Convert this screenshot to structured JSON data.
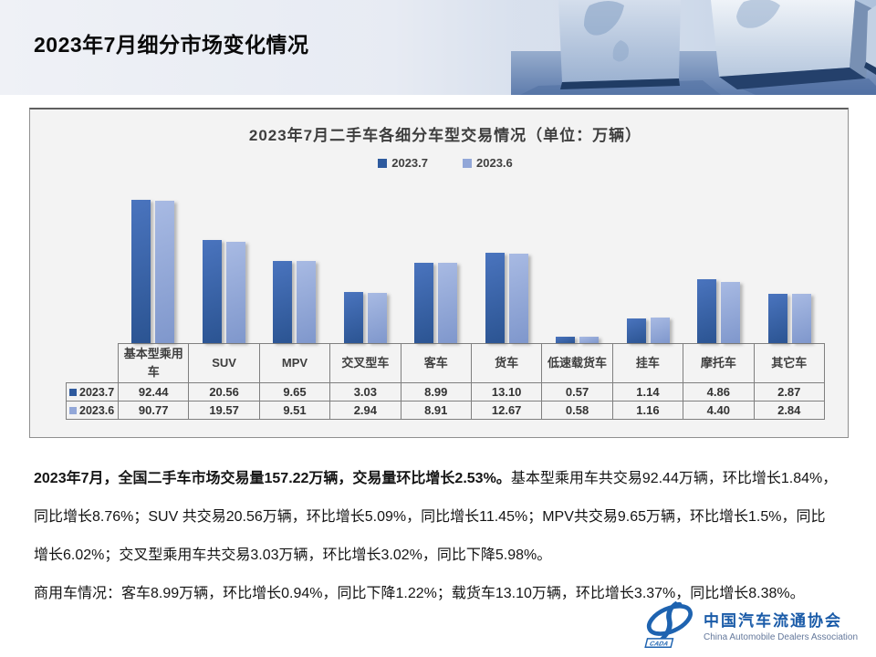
{
  "header": {
    "title": "2023年7月细分市场变化情况"
  },
  "chart_data": {
    "type": "bar",
    "title": "2023年7月二手车各细分车型交易情况（单位：万辆）",
    "unit": "万辆",
    "categories": [
      "基本型乘用车",
      "SUV",
      "MPV",
      "交叉型车",
      "客车",
      "货车",
      "低速载货车",
      "挂车",
      "摩托车",
      "其它车"
    ],
    "series": [
      {
        "name": "2023.7",
        "color": "#2E5A9E",
        "gradient": [
          "#4A74BE",
          "#2B5492"
        ],
        "values": [
          92.44,
          20.56,
          9.65,
          3.03,
          8.99,
          13.1,
          0.57,
          1.14,
          4.86,
          2.87
        ]
      },
      {
        "name": "2023.6",
        "color": "#92A7D8",
        "gradient": [
          "#A8BAE3",
          "#7F97CC"
        ],
        "values": [
          90.77,
          19.57,
          9.51,
          2.94,
          8.91,
          12.67,
          0.58,
          1.16,
          4.4,
          2.84
        ]
      }
    ],
    "y_scale": "log",
    "y_baseline": 0.456,
    "value_decimals": 2,
    "legend_position": "top-center",
    "grid": false,
    "data_table": true
  },
  "summary": {
    "p1_bold": "2023年7月，全国二手车市场交易量157.22万辆，交易量环比增长2.53%。",
    "p1_rest": "基本型乘用车共交易92.44万辆，环比增长1.84%，同比增长8.76%；SUV 共交易20.56万辆，环比增长5.09%，同比增长11.45%；MPV共交易9.65万辆，环比增长1.5%，同比增长6.02%；交叉型乘用车共交易3.03万辆，环比增长3.02%，同比下降5.98%。",
    "p2": "商用车情况：客车8.99万辆，环比增长0.94%，同比下降1.22%；载货车13.10万辆，环比增长3.37%，同比增长8.38%。"
  },
  "logo": {
    "badge": "CADA",
    "name_cn": "中国汽车流通协会",
    "name_en": "China Automobile Dealers Association",
    "color": "#1E63B0"
  }
}
